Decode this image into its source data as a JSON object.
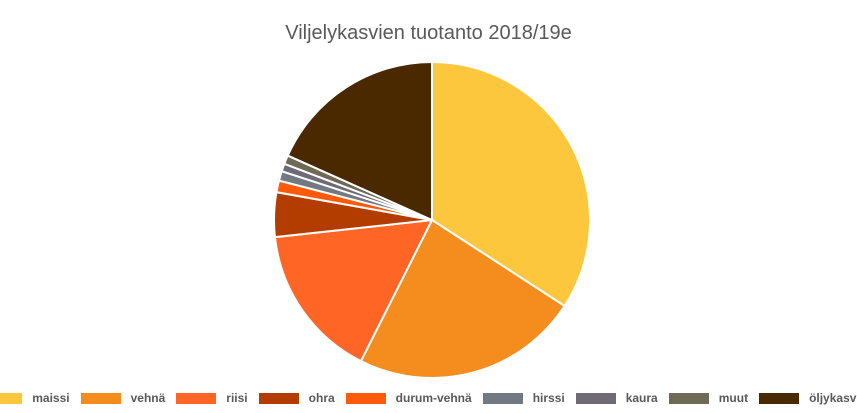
{
  "chart_data": {
    "type": "pie",
    "title": "Viljelykasvien tuotanto 2018/19e",
    "categories": [
      "maissi",
      "vehnä",
      "riisi",
      "ohra",
      "durum-vehnä",
      "hirssi",
      "kaura",
      "muut",
      "öljykasvit"
    ],
    "values": [
      34.5,
      23.5,
      16.0,
      4.6,
      1.2,
      1.0,
      0.8,
      0.9,
      18.5
    ],
    "colors": [
      "#FDC73D",
      "#F58C1E",
      "#FF6524",
      "#B33C00",
      "#FF5A0A",
      "#717A82",
      "#6E6A76",
      "#6E6A55",
      "#4A2800"
    ],
    "start_angle_deg": 0,
    "direction": "clockwise",
    "legend_position": "bottom"
  }
}
